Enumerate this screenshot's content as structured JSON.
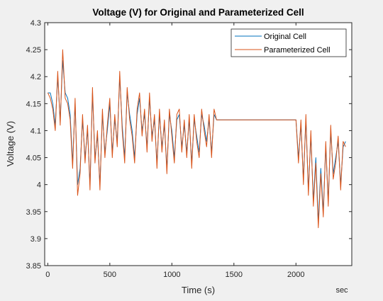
{
  "chart_data": {
    "type": "line",
    "title": "Voltage (V) for Original and Parameterized Cell",
    "xlabel": "Time (s)",
    "ylabel": "Voltage (V)",
    "x_unit_label": "sec",
    "xlim": [
      -25,
      2450
    ],
    "ylim": [
      3.85,
      4.3
    ],
    "xticks": [
      0,
      500,
      1000,
      1500,
      2000
    ],
    "yticks": [
      3.85,
      3.9,
      3.95,
      4,
      4.05,
      4.1,
      4.15,
      4.2,
      4.25,
      4.3
    ],
    "xtick_labels": [
      "0",
      "500",
      "1000",
      "1500",
      "2000"
    ],
    "ytick_labels": [
      "3.85",
      "3.9",
      "3.95",
      "4",
      "4.05",
      "4.1",
      "4.15",
      "4.2",
      "4.25",
      "4.3"
    ],
    "grid": false,
    "legend_position": "top-right",
    "colors": {
      "Original Cell": "#0072BD",
      "Parameterized Cell": "#D95319"
    },
    "series": [
      {
        "name": "Original Cell",
        "x": [
          0,
          20,
          40,
          60,
          80,
          100,
          120,
          140,
          160,
          180,
          200,
          220,
          240,
          260,
          280,
          300,
          320,
          340,
          360,
          380,
          400,
          420,
          440,
          460,
          480,
          500,
          520,
          540,
          560,
          580,
          600,
          620,
          640,
          660,
          680,
          700,
          720,
          740,
          760,
          780,
          800,
          820,
          840,
          860,
          880,
          900,
          920,
          940,
          960,
          980,
          1000,
          1020,
          1040,
          1060,
          1080,
          1100,
          1120,
          1140,
          1160,
          1180,
          1200,
          1220,
          1240,
          1260,
          1280,
          1300,
          1320,
          1340,
          1360,
          1380,
          1400,
          1500,
          1600,
          1700,
          1800,
          1900,
          2000,
          2020,
          2040,
          2060,
          2080,
          2100,
          2120,
          2140,
          2160,
          2180,
          2200,
          2220,
          2240,
          2260,
          2280,
          2300,
          2320,
          2340,
          2360,
          2380,
          2400
        ],
        "y": [
          4.17,
          4.17,
          4.15,
          4.11,
          4.2,
          4.12,
          4.23,
          4.17,
          4.16,
          4.13,
          4.04,
          4.15,
          4.0,
          4.03,
          4.12,
          4.05,
          4.1,
          4.0,
          4.17,
          4.05,
          4.09,
          4.0,
          4.13,
          4.06,
          4.1,
          4.15,
          4.06,
          4.12,
          4.08,
          4.2,
          4.11,
          4.05,
          4.17,
          4.13,
          4.1,
          4.05,
          4.13,
          4.16,
          4.1,
          4.13,
          4.07,
          4.16,
          4.09,
          4.12,
          4.04,
          4.13,
          4.07,
          4.11,
          4.03,
          4.13,
          4.1,
          4.05,
          4.12,
          4.13,
          4.07,
          4.11,
          4.06,
          4.12,
          4.04,
          4.12,
          4.09,
          4.06,
          4.13,
          4.11,
          4.08,
          4.12,
          4.06,
          4.13,
          4.12,
          4.12,
          4.12,
          4.12,
          4.12,
          4.12,
          4.12,
          4.12,
          4.12,
          4.05,
          4.11,
          4.01,
          4.12,
          3.99,
          4.09,
          3.97,
          4.05,
          3.93,
          4.03,
          3.95,
          4.07,
          3.97,
          4.1,
          4.02,
          4.05,
          4.08,
          4.0,
          4.07,
          4.08
        ]
      },
      {
        "name": "Parameterized Cell",
        "x": [
          0,
          20,
          40,
          60,
          80,
          100,
          120,
          140,
          160,
          180,
          200,
          220,
          240,
          260,
          280,
          300,
          320,
          340,
          360,
          380,
          400,
          420,
          440,
          460,
          480,
          500,
          520,
          540,
          560,
          580,
          600,
          620,
          640,
          660,
          680,
          700,
          720,
          740,
          760,
          780,
          800,
          820,
          840,
          860,
          880,
          900,
          920,
          940,
          960,
          980,
          1000,
          1020,
          1040,
          1060,
          1080,
          1100,
          1120,
          1140,
          1160,
          1180,
          1200,
          1220,
          1240,
          1260,
          1280,
          1300,
          1320,
          1340,
          1360,
          1380,
          1400,
          1500,
          1600,
          1700,
          1800,
          1900,
          2000,
          2020,
          2040,
          2060,
          2080,
          2100,
          2120,
          2140,
          2160,
          2180,
          2200,
          2220,
          2240,
          2260,
          2280,
          2300,
          2320,
          2340,
          2360,
          2380,
          2400
        ],
        "y": [
          4.17,
          4.16,
          4.14,
          4.1,
          4.21,
          4.11,
          4.25,
          4.16,
          4.15,
          4.12,
          4.03,
          4.16,
          3.98,
          4.02,
          4.13,
          4.04,
          4.11,
          3.99,
          4.18,
          4.04,
          4.1,
          3.99,
          4.14,
          4.05,
          4.11,
          4.16,
          4.05,
          4.13,
          4.07,
          4.21,
          4.1,
          4.04,
          4.18,
          4.12,
          4.09,
          4.04,
          4.14,
          4.17,
          4.09,
          4.14,
          4.06,
          4.17,
          4.08,
          4.13,
          4.03,
          4.14,
          4.06,
          4.12,
          4.02,
          4.14,
          4.09,
          4.04,
          4.13,
          4.14,
          4.06,
          4.12,
          4.05,
          4.13,
          4.03,
          4.13,
          4.08,
          4.05,
          4.14,
          4.1,
          4.07,
          4.13,
          4.05,
          4.14,
          4.12,
          4.12,
          4.12,
          4.12,
          4.12,
          4.12,
          4.12,
          4.12,
          4.12,
          4.04,
          4.12,
          4.0,
          4.13,
          3.98,
          4.1,
          3.96,
          4.04,
          3.92,
          4.02,
          3.94,
          4.08,
          3.96,
          4.11,
          4.01,
          4.04,
          4.09,
          3.99,
          4.08,
          4.07
        ]
      }
    ]
  }
}
